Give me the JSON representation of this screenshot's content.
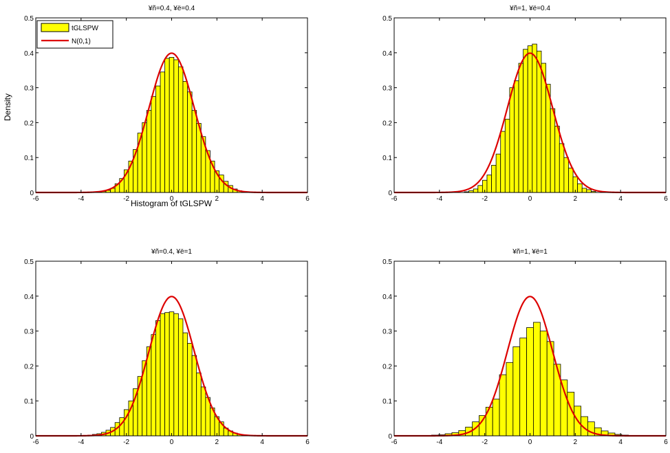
{
  "figure": {
    "ylabel": "Density",
    "xlabel": "Histogram of tGLSPW",
    "legend": {
      "position": "top-left",
      "entries": [
        "tGLSPW",
        "N(0,1)"
      ]
    }
  },
  "colors": {
    "bar_fill": "#ffff00",
    "bar_edge": "#000000",
    "curve": "#dd0000"
  },
  "chart_data": [
    {
      "type": "bar",
      "title": "¥ñ=0.4, ¥ë=0.4",
      "xlim": [
        -6,
        6
      ],
      "ylim": [
        0,
        0.5
      ],
      "xticks": [
        -6,
        -4,
        -2,
        0,
        2,
        4,
        6
      ],
      "yticks": [
        0,
        0.1,
        0.2,
        0.3,
        0.4,
        0.5
      ],
      "bin_width": 0.2,
      "bin_centers": [
        -3.0,
        -2.8,
        -2.6,
        -2.4,
        -2.2,
        -2.0,
        -1.8,
        -1.6,
        -1.4,
        -1.2,
        -1.0,
        -0.8,
        -0.6,
        -0.4,
        -0.2,
        0.0,
        0.2,
        0.4,
        0.6,
        0.8,
        1.0,
        1.2,
        1.4,
        1.6,
        1.8,
        2.0,
        2.2,
        2.4,
        2.6,
        2.8,
        3.0,
        3.2
      ],
      "values": [
        0.003,
        0.006,
        0.012,
        0.025,
        0.04,
        0.065,
        0.09,
        0.123,
        0.17,
        0.2,
        0.235,
        0.275,
        0.305,
        0.345,
        0.384,
        0.387,
        0.38,
        0.36,
        0.318,
        0.288,
        0.235,
        0.198,
        0.16,
        0.12,
        0.09,
        0.062,
        0.05,
        0.032,
        0.02,
        0.01,
        0.005,
        0.002
      ],
      "series": [
        {
          "name": "tGLSPW",
          "kind": "histogram"
        },
        {
          "name": "N(0,1)",
          "kind": "normal-pdf"
        }
      ]
    },
    {
      "type": "bar",
      "title": "¥ñ=1, ¥ë=0.4",
      "xlim": [
        -6,
        6
      ],
      "ylim": [
        0,
        0.5
      ],
      "xticks": [
        -6,
        -4,
        -2,
        0,
        2,
        4,
        6
      ],
      "yticks": [
        0,
        0.1,
        0.2,
        0.3,
        0.4,
        0.5
      ],
      "bin_width": 0.2,
      "bin_centers": [
        -2.8,
        -2.6,
        -2.4,
        -2.2,
        -2.0,
        -1.8,
        -1.6,
        -1.4,
        -1.2,
        -1.0,
        -0.8,
        -0.6,
        -0.4,
        -0.2,
        0.0,
        0.2,
        0.4,
        0.6,
        0.8,
        1.0,
        1.2,
        1.4,
        1.6,
        1.8,
        2.0,
        2.2,
        2.4,
        2.6,
        2.8
      ],
      "values": [
        0.002,
        0.005,
        0.01,
        0.02,
        0.035,
        0.05,
        0.078,
        0.11,
        0.175,
        0.21,
        0.3,
        0.32,
        0.37,
        0.41,
        0.42,
        0.425,
        0.405,
        0.37,
        0.31,
        0.24,
        0.19,
        0.14,
        0.1,
        0.07,
        0.045,
        0.025,
        0.012,
        0.008,
        0.003
      ],
      "series": [
        {
          "name": "tGLSPW",
          "kind": "histogram"
        },
        {
          "name": "N(0,1)",
          "kind": "normal-pdf"
        }
      ]
    },
    {
      "type": "bar",
      "title": "¥ñ=0.4, ¥ë=1",
      "xlim": [
        -6,
        6
      ],
      "ylim": [
        0,
        0.5
      ],
      "xticks": [
        -6,
        -4,
        -2,
        0,
        2,
        4,
        6
      ],
      "yticks": [
        0,
        0.1,
        0.2,
        0.3,
        0.4,
        0.5
      ],
      "bin_width": 0.2,
      "bin_centers": [
        -3.6,
        -3.4,
        -3.2,
        -3.0,
        -2.8,
        -2.6,
        -2.4,
        -2.2,
        -2.0,
        -1.8,
        -1.6,
        -1.4,
        -1.2,
        -1.0,
        -0.8,
        -0.6,
        -0.4,
        -0.2,
        0.0,
        0.2,
        0.4,
        0.6,
        0.8,
        1.0,
        1.2,
        1.4,
        1.6,
        1.8,
        2.0,
        2.2,
        2.4,
        2.6,
        2.8,
        3.0
      ],
      "values": [
        0.002,
        0.004,
        0.006,
        0.01,
        0.016,
        0.024,
        0.038,
        0.052,
        0.075,
        0.1,
        0.135,
        0.17,
        0.215,
        0.255,
        0.29,
        0.33,
        0.35,
        0.353,
        0.355,
        0.35,
        0.335,
        0.295,
        0.265,
        0.23,
        0.18,
        0.14,
        0.11,
        0.08,
        0.055,
        0.04,
        0.022,
        0.014,
        0.008,
        0.004
      ],
      "series": [
        {
          "name": "tGLSPW",
          "kind": "histogram"
        },
        {
          "name": "N(0,1)",
          "kind": "normal-pdf"
        }
      ]
    },
    {
      "type": "bar",
      "title": "¥ñ=1, ¥ë=1",
      "xlim": [
        -6,
        6
      ],
      "ylim": [
        0,
        0.5
      ],
      "xticks": [
        -6,
        -4,
        -2,
        0,
        2,
        4,
        6
      ],
      "yticks": [
        0,
        0.1,
        0.2,
        0.3,
        0.4,
        0.5
      ],
      "bin_width": 0.3,
      "bin_centers": [
        -4.5,
        -4.2,
        -3.9,
        -3.6,
        -3.3,
        -3.0,
        -2.7,
        -2.4,
        -2.1,
        -1.8,
        -1.5,
        -1.2,
        -0.9,
        -0.6,
        -0.3,
        0.0,
        0.3,
        0.6,
        0.9,
        1.2,
        1.5,
        1.8,
        2.1,
        2.4,
        2.7,
        3.0,
        3.3,
        3.6,
        3.9,
        4.2
      ],
      "values": [
        0.001,
        0.002,
        0.003,
        0.006,
        0.009,
        0.015,
        0.025,
        0.04,
        0.058,
        0.082,
        0.105,
        0.175,
        0.21,
        0.255,
        0.28,
        0.31,
        0.325,
        0.3,
        0.27,
        0.205,
        0.16,
        0.125,
        0.085,
        0.055,
        0.04,
        0.023,
        0.014,
        0.008,
        0.004,
        0.002
      ],
      "series": [
        {
          "name": "tGLSPW",
          "kind": "histogram"
        },
        {
          "name": "N(0,1)",
          "kind": "normal-pdf"
        }
      ]
    }
  ]
}
